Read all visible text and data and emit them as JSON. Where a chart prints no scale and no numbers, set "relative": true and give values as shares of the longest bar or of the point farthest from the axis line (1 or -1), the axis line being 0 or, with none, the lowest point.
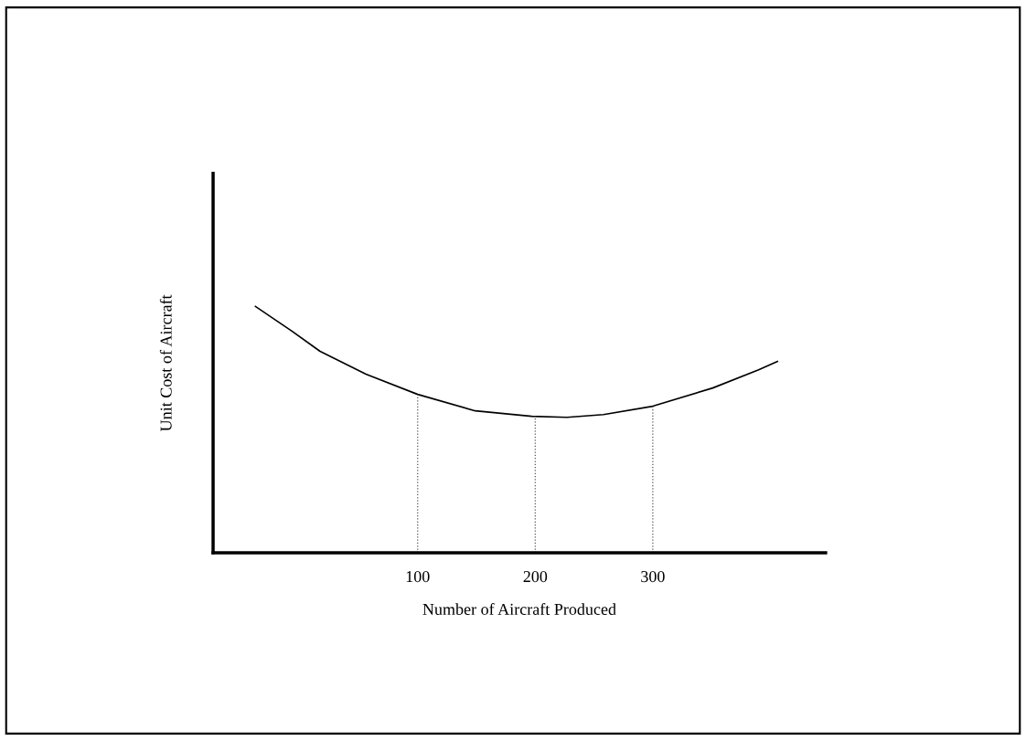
{
  "chart_data": {
    "type": "line",
    "xlabel": "Number of Aircraft Produced",
    "ylabel": "Unit Cost of Aircraft",
    "relative": true,
    "xlim": [
      -74,
      447
    ],
    "xticks": [
      100,
      200,
      300
    ],
    "series": [
      {
        "color": "#000000",
        "x": [
          -38,
          -7,
          17,
          56,
          100,
          149,
          197,
          227,
          258,
          300,
          351,
          390,
          406
        ],
        "values": [
          1.0,
          0.9,
          0.818,
          0.725,
          0.643,
          0.576,
          0.554,
          0.55,
          0.561,
          0.595,
          0.669,
          0.743,
          0.777
        ]
      }
    ],
    "ref_lines": [
      {
        "axis": "x",
        "value": 100,
        "line_style": "dotted",
        "color": "#555555"
      },
      {
        "axis": "x",
        "value": 200,
        "line_style": "dotted",
        "color": "#555555"
      },
      {
        "axis": "x",
        "value": 300,
        "line_style": "dotted",
        "color": "#555555"
      }
    ],
    "grid": false,
    "legend": false,
    "marker": "none",
    "line_style": "solid"
  }
}
